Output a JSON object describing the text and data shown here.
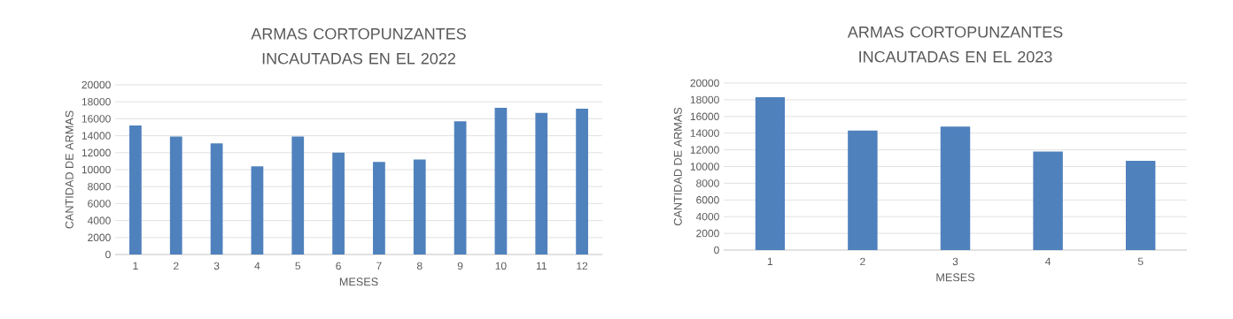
{
  "chart_data": [
    {
      "type": "bar",
      "title": "ARMAS CORTOPUNZANTES INCAUTADAS EN EL 2022",
      "xlabel": "MESES",
      "ylabel": "CANTIDAD DE ARMAS",
      "categories": [
        "1",
        "2",
        "3",
        "4",
        "5",
        "6",
        "7",
        "8",
        "9",
        "10",
        "11",
        "12"
      ],
      "values": [
        15200,
        13900,
        13100,
        10400,
        13900,
        12000,
        10900,
        11200,
        15700,
        17300,
        16700,
        17200
      ],
      "color": "#4f81bd",
      "ylim": [
        0,
        20000
      ],
      "yticks": [
        0,
        2000,
        4000,
        6000,
        8000,
        10000,
        12000,
        14000,
        16000,
        18000,
        20000
      ],
      "grid": "y"
    },
    {
      "type": "bar",
      "title": "ARMAS CORTOPUNZANTES INCAUTADAS EN EL 2023",
      "xlabel": "MESES",
      "ylabel": "CANTIDAD DE ARMAS",
      "categories": [
        "1",
        "2",
        "3",
        "4",
        "5"
      ],
      "values": [
        18300,
        14300,
        14800,
        11800,
        10700
      ],
      "color": "#4f81bd",
      "ylim": [
        0,
        20000
      ],
      "yticks": [
        0,
        2000,
        4000,
        6000,
        8000,
        10000,
        12000,
        14000,
        16000,
        18000,
        20000
      ],
      "grid": "y"
    }
  ]
}
